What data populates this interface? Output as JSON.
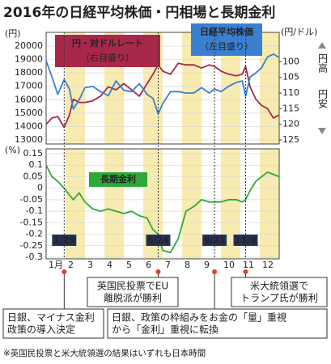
{
  "title": "2016年の日経平均株価・円相場と長期金利",
  "chart_data": [
    {
      "type": "line",
      "ylabel": "(円)",
      "y2label": "(円/ドル)",
      "y2_direction": [
        "円高",
        "円安"
      ],
      "xlim": [
        1,
        13
      ],
      "x": [
        1.0,
        1.3,
        1.6,
        1.93,
        2.2,
        2.4,
        2.7,
        3.0,
        3.4,
        3.8,
        4.2,
        4.6,
        5.0,
        5.4,
        5.8,
        6.2,
        6.5,
        6.77,
        7.0,
        7.4,
        7.8,
        8.2,
        8.6,
        9.0,
        9.4,
        9.67,
        10.0,
        10.4,
        10.8,
        11.1,
        11.27,
        11.5,
        11.8,
        12.1,
        12.4,
        12.7,
        13.0
      ],
      "ylim": [
        13000,
        20000
      ],
      "yticks": [
        13000,
        14000,
        15000,
        16000,
        17000,
        18000,
        19000,
        20000
      ],
      "y2lim": [
        125,
        95
      ],
      "y2ticks": [
        100,
        105,
        110,
        115,
        120,
        125
      ],
      "grid": true,
      "series": [
        {
          "name": "円・対ドルレート",
          "scale_note": "（右目盛り）",
          "color": "#a8284a",
          "axis": "y2",
          "values": [
            120,
            118,
            117.5,
            121,
            117,
            112,
            113,
            113,
            112.5,
            111,
            108,
            109,
            107,
            109,
            111,
            107,
            104,
            101,
            103,
            104,
            100.5,
            101,
            101,
            102,
            101,
            101.5,
            103,
            104,
            104.5,
            104,
            101.5,
            108,
            112,
            114,
            115,
            118,
            117
          ]
        },
        {
          "name": "日経平均株価",
          "scale_note": "（左目盛り）",
          "color": "#3a7fd0",
          "values": [
            18900,
            17700,
            16400,
            17500,
            16800,
            15300,
            16000,
            16900,
            17000,
            16600,
            16300,
            17400,
            16700,
            16600,
            17200,
            16400,
            16100,
            14950,
            15700,
            16600,
            16600,
            16500,
            16500,
            16900,
            16500,
            16800,
            16600,
            17000,
            17300,
            17400,
            16250,
            17700,
            18000,
            18400,
            19200,
            19400,
            19150
          ]
        }
      ]
    },
    {
      "type": "line",
      "ylabel": "(%)",
      "xlim": [
        1,
        13
      ],
      "x": [
        1.0,
        1.3,
        1.6,
        1.93,
        2.2,
        2.4,
        2.7,
        3.0,
        3.4,
        3.8,
        4.2,
        4.6,
        5.0,
        5.4,
        5.8,
        6.2,
        6.5,
        6.77,
        7.0,
        7.4,
        7.8,
        8.2,
        8.6,
        9.0,
        9.4,
        9.67,
        10.0,
        10.4,
        10.8,
        11.1,
        11.27,
        11.5,
        11.8,
        12.1,
        12.4,
        12.7,
        13.0
      ],
      "xticks": [
        {
          "value": 1,
          "label": "1月"
        },
        2,
        3,
        4,
        5,
        6,
        7,
        8,
        9,
        10,
        11,
        12
      ],
      "ylim": [
        -0.3,
        0.15
      ],
      "yticks": [
        -0.3,
        -0.25,
        -0.2,
        -0.15,
        -0.1,
        -0.05,
        0,
        0.05,
        0.1,
        0.15
      ],
      "grid": true,
      "series": [
        {
          "name": "長期金利",
          "color": "#2fa83a",
          "values": [
            0.1,
            0.05,
            0.03,
            0,
            -0.03,
            -0.05,
            -0.02,
            -0.06,
            -0.09,
            -0.1,
            -0.09,
            -0.1,
            -0.11,
            -0.1,
            -0.12,
            -0.13,
            -0.18,
            -0.2,
            -0.27,
            -0.28,
            -0.22,
            -0.1,
            -0.08,
            -0.05,
            -0.06,
            -0.06,
            -0.06,
            -0.05,
            -0.05,
            -0.06,
            -0.05,
            -0.01,
            0.03,
            0.05,
            0.07,
            0.06,
            0.05
          ]
        }
      ]
    }
  ],
  "events": [
    {
      "label": "1/29",
      "x": 1.93
    },
    {
      "label": "6/24",
      "x": 6.77
    },
    {
      "label": "9/21",
      "x": 9.67
    },
    {
      "label": "11/9",
      "x": 11.27
    }
  ],
  "notes": [
    {
      "lines": [
        "英国民投票でEU",
        "離脱派が勝利"
      ]
    },
    {
      "lines": [
        "米大統領選で",
        "トランプ氏が勝利"
      ]
    },
    {
      "lines": [
        "日銀、マイナス金利",
        "政策の導入決定"
      ]
    },
    {
      "lines": [
        "日銀、政策の枠組みをお金の「量」重視",
        "から「金利」重視に転換"
      ]
    }
  ],
  "footnote": "※英国民投票と米大統領選の結果はいずれも日本時間"
}
